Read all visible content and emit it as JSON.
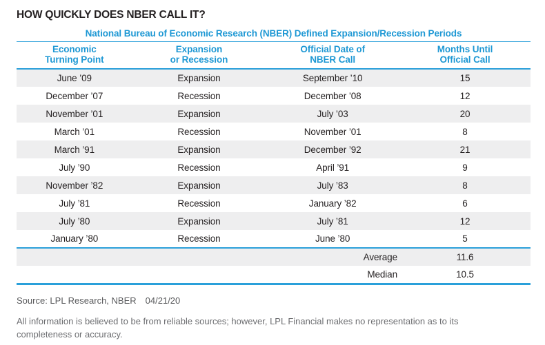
{
  "page": {
    "title": "HOW QUICKLY DOES NBER CALL IT?",
    "source_label": "Source: LPL Research, NBER",
    "source_date": "04/21/20",
    "disclaimer": "All information is believed to be from reliable sources; however, LPL Financial makes no representation as to its completeness or accuracy."
  },
  "colors": {
    "accent_blue": "#1E98D4",
    "line_blue": "#2AA0DA",
    "row_shade_gray": "#EEEEEF",
    "text_dark": "#231F20",
    "source_gray": "#58595B",
    "disclaimer_gray": "#6D6E71"
  },
  "chart_data": {
    "type": "table",
    "title": "National Bureau of Economic Research (NBER) Defined Expansion/Recession Periods",
    "columns": [
      [
        "Economic",
        "Turning Point"
      ],
      [
        "Expansion",
        "or Recession"
      ],
      [
        "Official Date of",
        "NBER Call"
      ],
      [
        "Months Until",
        "Official Call"
      ]
    ],
    "rows": [
      [
        "June ’09",
        "Expansion",
        "September ’10",
        "15"
      ],
      [
        "December ’07",
        "Recession",
        "December ’08",
        "12"
      ],
      [
        "November ’01",
        "Expansion",
        "July ’03",
        "20"
      ],
      [
        "March ’01",
        "Recession",
        "November ’01",
        "8"
      ],
      [
        "March ’91",
        "Expansion",
        "December ’92",
        "21"
      ],
      [
        "July ’90",
        "Recession",
        "April ’91",
        "9"
      ],
      [
        "November ’82",
        "Expansion",
        "July ’83",
        "8"
      ],
      [
        "July ’81",
        "Recession",
        "January ’82",
        "6"
      ],
      [
        "July ’80",
        "Expansion",
        "July ’81",
        "12"
      ],
      [
        "January ’80",
        "Recession",
        "June ’80",
        "5"
      ]
    ],
    "summary": [
      {
        "label": "Average",
        "value": "11.6"
      },
      {
        "label": "Median",
        "value": "10.5"
      }
    ],
    "layout": {
      "column_widths_pct": [
        22.5,
        26,
        26,
        25.5
      ],
      "shaded_first_row": true
    }
  }
}
